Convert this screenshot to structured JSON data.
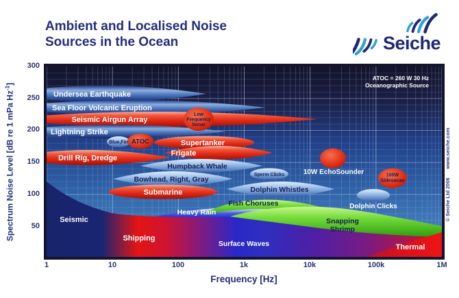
{
  "header": {
    "title_line1": "Ambient and Localised Noise",
    "title_line2": "Sources in the Ocean",
    "logo_text": "Seiche"
  },
  "axes": {
    "x_title": "Frequency [Hz]",
    "x_ticks": [
      "1",
      "10",
      "100",
      "1k",
      "10k",
      "100k",
      "1M"
    ],
    "y_title_prefix": "Spectrum Noise Level [dB re 1 mPa Hz",
    "y_title_sup": "-1",
    "y_title_suffix": "]",
    "y_ticks": [
      "300",
      "250",
      "200",
      "150",
      "100",
      "50"
    ]
  },
  "annotation": {
    "line1": "ATOC = 260 W 30 Hz",
    "line2": "Oceanographic Source"
  },
  "watermark": "© Seiche Ltd 2006      www.seiche.com",
  "colors": {
    "title_navy": "#232d7d",
    "plot_frame": "#14142e",
    "red_source": "#e52c18",
    "blue_source": "#4d79c0",
    "light_blue_source": "#9cbfe8",
    "green_band": "#6ed435",
    "rain_blue": "#2a38d0",
    "thermal_red": "#e01212"
  },
  "chart_data": {
    "type": "area",
    "title": "Ambient and Localised Noise Sources in the Ocean",
    "xlabel": "Frequency [Hz]",
    "ylabel": "Spectrum Noise Level [dB re 1 mPa Hz-1]",
    "x_scale": "log",
    "x_range_hz": [
      1,
      1000000
    ],
    "y_range_db": [
      0,
      300
    ],
    "y_tick_step_db": 50,
    "grid": "on",
    "localised_sources": [
      {
        "label": "Undersea Earthquake",
        "color": "blue",
        "freq_hz": [
          1,
          270
        ],
        "level_db": [
          245,
          270
        ]
      },
      {
        "label": "Sea Floor Volcanic Eruption",
        "color": "blue",
        "freq_hz": [
          1,
          2100
        ],
        "level_db": [
          226,
          247
        ]
      },
      {
        "label": "Seismic Airgun Array",
        "color": "red",
        "freq_hz": [
          1,
          12000
        ],
        "level_db": [
          207,
          229
        ]
      },
      {
        "label": "Low Frequency Sonar",
        "label_lines": [
          "Low",
          "Frequency",
          "Sonar"
        ],
        "color": "red",
        "freq_hz": [
          120,
          350
        ],
        "level_db": [
          200,
          236
        ]
      },
      {
        "label": "Lightning Strike",
        "color": "blue",
        "freq_hz": [
          1,
          500
        ],
        "level_db": [
          188,
          208
        ]
      },
      {
        "label": "Blue,Fin",
        "color": "light_blue",
        "freq_hz": [
          9,
          18
        ],
        "level_db": [
          174,
          190
        ]
      },
      {
        "label": "ATOC",
        "color": "red",
        "freq_hz": [
          17,
          42
        ],
        "level_db": [
          171,
          195
        ]
      },
      {
        "label": "Supertanker",
        "color": "red",
        "freq_hz": [
          43,
          1400
        ],
        "level_db": [
          171,
          191
        ]
      },
      {
        "label": "Frigate",
        "color": "red",
        "freq_hz": [
          61,
          2500
        ],
        "level_db": [
          154,
          176
        ]
      },
      {
        "label": "Drill Rig, Dredge",
        "color": "red",
        "freq_hz": [
          1,
          72
        ],
        "level_db": [
          146,
          170
        ]
      },
      {
        "label": "Humpback Whale",
        "color": "light_blue",
        "freq_hz": [
          27,
          1800
        ],
        "level_db": [
          134,
          156
        ]
      },
      {
        "label": "Bowhead, Right, Gray",
        "color": "light_blue",
        "freq_hz": [
          10,
          640
        ],
        "level_db": [
          113,
          136
        ]
      },
      {
        "label": "Sperm Clicks",
        "color": "light_blue",
        "freq_hz": [
          1300,
          4400
        ],
        "level_db": [
          123,
          141
        ]
      },
      {
        "label": "Submarine",
        "color": "red",
        "freq_hz": [
          9,
          390
        ],
        "level_db": [
          93,
          115
        ]
      },
      {
        "label": "Dolphin Whistles",
        "color": "light_blue",
        "freq_hz": [
          550,
          23000
        ],
        "level_db": [
          96,
          120
        ]
      },
      {
        "label": "10W EchoSounder",
        "color": "red",
        "freq_hz": [
          14000,
          35000
        ],
        "level_db": [
          141,
          172
        ]
      },
      {
        "label": "100W Sidesacan",
        "label_lines": [
          "100W",
          "Sidesacan"
        ],
        "color": "red",
        "freq_hz": [
          108000,
          295000
        ],
        "level_db": [
          110,
          141
        ]
      },
      {
        "label": "Dolphin Clicks",
        "color": "light_blue",
        "freq_hz": [
          51000,
          160000
        ],
        "level_db": [
          89,
          108
        ]
      }
    ],
    "ambient_bands": [
      {
        "label": "Seismic",
        "freq_hz": [
          1,
          12
        ],
        "level_db": [
          0,
          120
        ]
      },
      {
        "label": "Shipping",
        "freq_hz": [
          5,
          120
        ],
        "level_db": [
          0,
          95
        ]
      },
      {
        "label": "Heavy Rain",
        "freq_hz": [
          130,
          13000
        ],
        "level_db": [
          65,
          80
        ]
      },
      {
        "label": "Fish Choruses",
        "freq_hz": [
          250,
          25000
        ],
        "level_db": [
          72,
          92
        ]
      },
      {
        "label": "Snapping Shrimp",
        "label_lines": [
          "Snapping",
          "Shrimp"
        ],
        "freq_hz": [
          650,
          1000000
        ],
        "level_db": [
          35,
          85
        ]
      },
      {
        "label": "Surface Waves",
        "freq_hz": [
          150,
          60000
        ],
        "level_db": [
          0,
          60
        ]
      },
      {
        "label": "Thermal",
        "freq_hz": [
          200000,
          1000000
        ],
        "level_db": [
          0,
          40
        ]
      }
    ]
  }
}
